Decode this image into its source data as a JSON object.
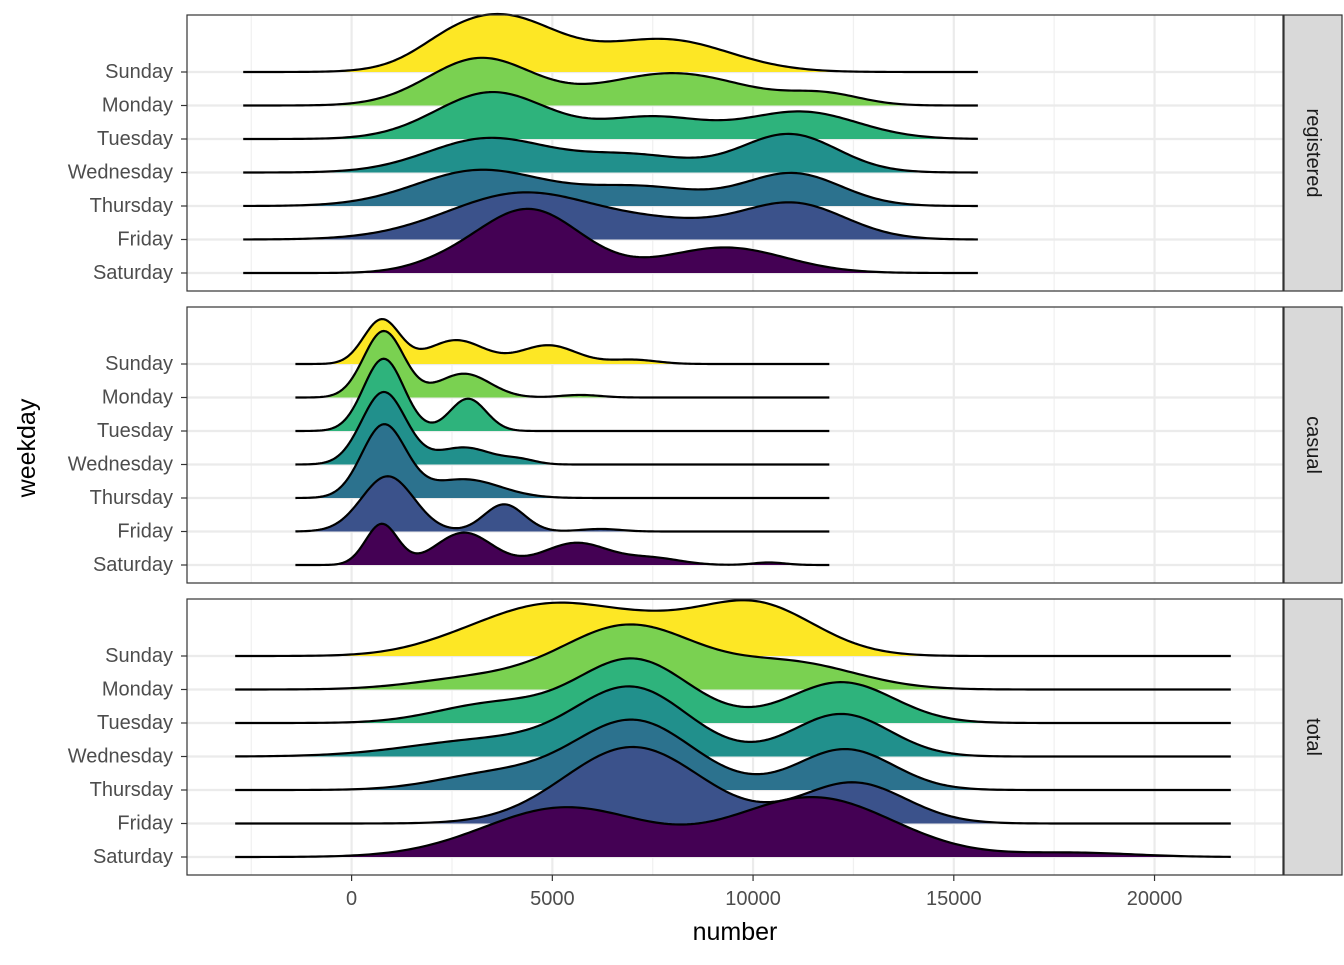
{
  "chart_data": {
    "type": "ridgeline",
    "xlabel": "number",
    "ylabel": "weekday",
    "xlim": [
      -4100,
      23200
    ],
    "x_ticks": [
      0,
      5000,
      10000,
      15000,
      20000
    ],
    "x_tick_labels": [
      "0",
      "5000",
      "10000",
      "15000",
      "20000"
    ],
    "categories": [
      "Sunday",
      "Monday",
      "Tuesday",
      "Wednesday",
      "Thursday",
      "Friday",
      "Saturday"
    ],
    "category_colors": {
      "Sunday": "#FDE725",
      "Monday": "#7AD151",
      "Tuesday": "#2EB37C",
      "Wednesday": "#21908C",
      "Thursday": "#2C728E",
      "Friday": "#3B528B",
      "Saturday": "#440154"
    },
    "grid": true,
    "facets": [
      {
        "label": "registered",
        "ridges": [
          {
            "category": "Sunday",
            "x_range": [
              -2700,
              15600
            ],
            "peaks": [
              {
                "mean": 3700,
                "sd": 1400,
                "height": 0.65
              },
              {
                "mean": 7800,
                "sd": 1600,
                "height": 0.38
              },
              {
                "mean": 2300,
                "sd": 800,
                "height": 0.08
              }
            ]
          },
          {
            "category": "Monday",
            "x_range": [
              -2700,
              15600
            ],
            "peaks": [
              {
                "mean": 3200,
                "sd": 1300,
                "height": 0.55
              },
              {
                "mean": 8000,
                "sd": 1800,
                "height": 0.38
              },
              {
                "mean": 11800,
                "sd": 900,
                "height": 0.12
              }
            ]
          },
          {
            "category": "Tuesday",
            "x_range": [
              -2700,
              15600
            ],
            "peaks": [
              {
                "mean": 3500,
                "sd": 1400,
                "height": 0.55
              },
              {
                "mean": 7500,
                "sd": 1300,
                "height": 0.25
              },
              {
                "mean": 11200,
                "sd": 1400,
                "height": 0.32
              }
            ]
          },
          {
            "category": "Wednesday",
            "x_range": [
              -2700,
              15600
            ],
            "peaks": [
              {
                "mean": 3400,
                "sd": 1500,
                "height": 0.4
              },
              {
                "mean": 7000,
                "sd": 1400,
                "height": 0.2
              },
              {
                "mean": 10900,
                "sd": 1200,
                "height": 0.45
              }
            ]
          },
          {
            "category": "Thursday",
            "x_range": [
              -2700,
              15600
            ],
            "peaks": [
              {
                "mean": 3200,
                "sd": 1600,
                "height": 0.42
              },
              {
                "mean": 7200,
                "sd": 1500,
                "height": 0.22
              },
              {
                "mean": 11000,
                "sd": 1200,
                "height": 0.38
              }
            ]
          },
          {
            "category": "Friday",
            "x_range": [
              -2700,
              15600
            ],
            "peaks": [
              {
                "mean": 4300,
                "sd": 1900,
                "height": 0.55
              },
              {
                "mean": 8000,
                "sd": 1400,
                "height": 0.15
              },
              {
                "mean": 11000,
                "sd": 1300,
                "height": 0.42
              }
            ]
          },
          {
            "category": "Saturday",
            "x_range": [
              -2700,
              15600
            ],
            "peaks": [
              {
                "mean": 4400,
                "sd": 1300,
                "height": 0.75
              },
              {
                "mean": 9300,
                "sd": 1500,
                "height": 0.3
              },
              {
                "mean": 2200,
                "sd": 900,
                "height": 0.06
              }
            ]
          }
        ]
      },
      {
        "label": "casual",
        "ridges": [
          {
            "category": "Sunday",
            "x_range": [
              -1400,
              11900
            ],
            "peaks": [
              {
                "mean": 750,
                "sd": 450,
                "height": 0.52
              },
              {
                "mean": 2600,
                "sd": 700,
                "height": 0.28
              },
              {
                "mean": 4900,
                "sd": 700,
                "height": 0.22
              },
              {
                "mean": 7000,
                "sd": 600,
                "height": 0.05
              }
            ]
          },
          {
            "category": "Monday",
            "x_range": [
              -1400,
              11900
            ],
            "peaks": [
              {
                "mean": 800,
                "sd": 500,
                "height": 0.78
              },
              {
                "mean": 2800,
                "sd": 650,
                "height": 0.28
              },
              {
                "mean": 5700,
                "sd": 500,
                "height": 0.03
              }
            ]
          },
          {
            "category": "Tuesday",
            "x_range": [
              -1400,
              11900
            ],
            "peaks": [
              {
                "mean": 800,
                "sd": 500,
                "height": 0.85
              },
              {
                "mean": 2900,
                "sd": 450,
                "height": 0.38
              }
            ]
          },
          {
            "category": "Wednesday",
            "x_range": [
              -1400,
              11900
            ],
            "peaks": [
              {
                "mean": 800,
                "sd": 550,
                "height": 0.85
              },
              {
                "mean": 2800,
                "sd": 700,
                "height": 0.2
              },
              {
                "mean": 4200,
                "sd": 400,
                "height": 0.05
              }
            ]
          },
          {
            "category": "Thursday",
            "x_range": [
              -1400,
              11900
            ],
            "peaks": [
              {
                "mean": 800,
                "sd": 550,
                "height": 0.85
              },
              {
                "mean": 2800,
                "sd": 900,
                "height": 0.22
              }
            ]
          },
          {
            "category": "Friday",
            "x_range": [
              -1400,
              11900
            ],
            "peaks": [
              {
                "mean": 900,
                "sd": 650,
                "height": 0.65
              },
              {
                "mean": 3800,
                "sd": 500,
                "height": 0.32
              },
              {
                "mean": 6200,
                "sd": 500,
                "height": 0.03
              }
            ]
          },
          {
            "category": "Saturday",
            "x_range": [
              -1400,
              11900
            ],
            "peaks": [
              {
                "mean": 750,
                "sd": 400,
                "height": 0.48
              },
              {
                "mean": 2800,
                "sd": 700,
                "height": 0.38
              },
              {
                "mean": 5600,
                "sd": 800,
                "height": 0.26
              },
              {
                "mean": 7500,
                "sd": 700,
                "height": 0.08
              },
              {
                "mean": 10400,
                "sd": 400,
                "height": 0.03
              }
            ]
          }
        ]
      },
      {
        "label": "total",
        "ridges": [
          {
            "category": "Sunday",
            "x_range": [
              -2900,
              21900
            ],
            "peaks": [
              {
                "mean": 5000,
                "sd": 1800,
                "height": 0.6
              },
              {
                "mean": 10000,
                "sd": 1500,
                "height": 0.62
              },
              {
                "mean": 7500,
                "sd": 1200,
                "height": 0.15
              },
              {
                "mean": 2500,
                "sd": 1200,
                "height": 0.05
              }
            ]
          },
          {
            "category": "Monday",
            "x_range": [
              -2900,
              21900
            ],
            "peaks": [
              {
                "mean": 6900,
                "sd": 1700,
                "height": 0.75
              },
              {
                "mean": 11000,
                "sd": 1600,
                "height": 0.3
              },
              {
                "mean": 3000,
                "sd": 1500,
                "height": 0.12
              }
            ]
          },
          {
            "category": "Tuesday",
            "x_range": [
              -2900,
              21900
            ],
            "peaks": [
              {
                "mean": 7000,
                "sd": 1400,
                "height": 0.75
              },
              {
                "mean": 12200,
                "sd": 1300,
                "height": 0.48
              },
              {
                "mean": 3500,
                "sd": 1400,
                "height": 0.22
              }
            ]
          },
          {
            "category": "Wednesday",
            "x_range": [
              -2900,
              21900
            ],
            "peaks": [
              {
                "mean": 7000,
                "sd": 1400,
                "height": 0.78
              },
              {
                "mean": 12200,
                "sd": 1200,
                "height": 0.5
              },
              {
                "mean": 3500,
                "sd": 2000,
                "height": 0.2
              }
            ]
          },
          {
            "category": "Thursday",
            "x_range": [
              -2900,
              21900
            ],
            "peaks": [
              {
                "mean": 7000,
                "sd": 1500,
                "height": 0.82
              },
              {
                "mean": 12300,
                "sd": 1200,
                "height": 0.48
              },
              {
                "mean": 3500,
                "sd": 1400,
                "height": 0.18
              }
            ]
          },
          {
            "category": "Friday",
            "x_range": [
              -2900,
              21900
            ],
            "peaks": [
              {
                "mean": 7000,
                "sd": 1700,
                "height": 0.9
              },
              {
                "mean": 12500,
                "sd": 1300,
                "height": 0.48
              }
            ]
          },
          {
            "category": "Saturday",
            "x_range": [
              -2900,
              21900
            ],
            "peaks": [
              {
                "mean": 5300,
                "sd": 2000,
                "height": 0.58
              },
              {
                "mean": 11500,
                "sd": 2000,
                "height": 0.7
              },
              {
                "mean": 18000,
                "sd": 1500,
                "height": 0.05
              }
            ]
          }
        ]
      }
    ]
  }
}
